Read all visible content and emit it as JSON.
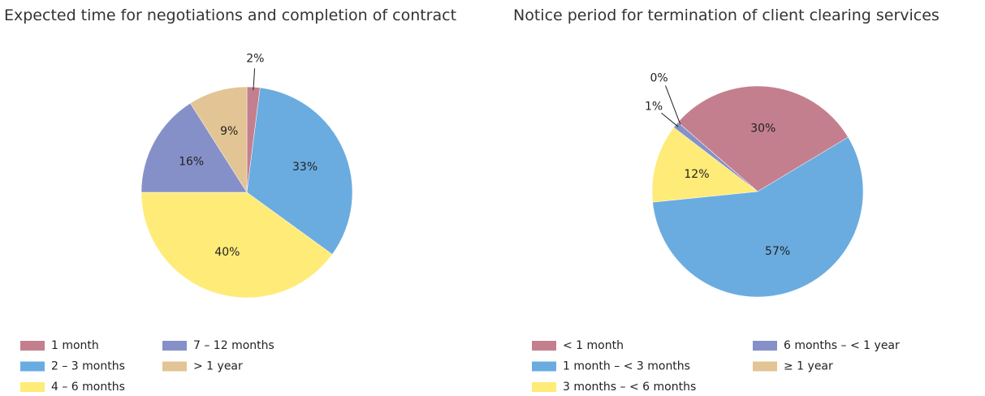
{
  "chart_data": [
    {
      "type": "pie",
      "title": "Expected time for negotiations and completion of contract",
      "categories": [
        "1 month",
        "2 – 3 months",
        "4 – 6 months",
        "7 – 12 months",
        "> 1 year"
      ],
      "values": [
        2,
        33,
        40,
        16,
        9
      ],
      "value_labels": [
        "2%",
        "33%",
        "40%",
        "16%",
        "9%"
      ],
      "colors": [
        "#c47f8e",
        "#6aace0",
        "#ffeb78",
        "#8690c8",
        "#e3c494"
      ]
    },
    {
      "type": "pie",
      "title": "Notice period for termination of client clearing services",
      "categories": [
        "< 1 month",
        "1 month  –  < 3 months",
        "3 months –  < 6 months",
        "6 months –  < 1 year",
        "≥ 1 year"
      ],
      "values": [
        30,
        57,
        12,
        1,
        0
      ],
      "value_labels": [
        "30%",
        "57%",
        "12%",
        "1%",
        "0%"
      ],
      "colors": [
        "#c47f8e",
        "#6aace0",
        "#ffeb78",
        "#8690c8",
        "#e3c494"
      ]
    }
  ]
}
